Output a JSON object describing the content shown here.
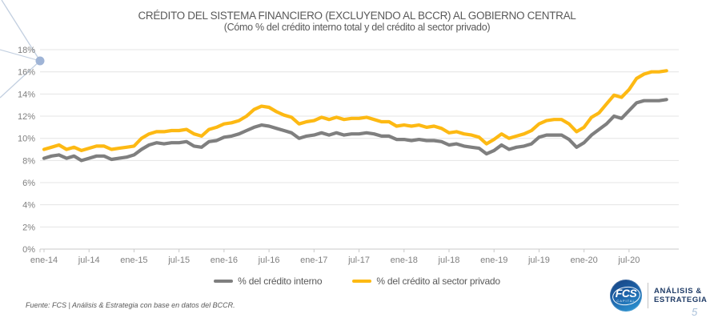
{
  "header": {
    "title": "CRÉDITO DEL SISTEMA FINANCIERO (EXCLUYENDO AL BCCR) AL GOBIERNO CENTRAL",
    "subtitle": "(Cómo % del crédito interno total y del crédito al sector privado)"
  },
  "legend": {
    "items": [
      {
        "label": "% del crédito interno",
        "color": "#7f7f7f"
      },
      {
        "label": "% del crédito al sector privado",
        "color": "#fdb913"
      }
    ]
  },
  "footer": {
    "source": "Fuente: FCS  | Análisis & Estrategia con base en datos del  BCCR."
  },
  "logo": {
    "circle_text": "FCS",
    "circle_subtext": "CAPITAL",
    "line1": "ANÁLISIS &",
    "line2": "ESTRATEGIA"
  },
  "page": {
    "number": "5"
  },
  "decoration": {
    "dot_color": "#9fb4d6",
    "line_color": "#c2cfe0"
  },
  "chart_data": {
    "type": "line",
    "title": "CRÉDITO DEL SISTEMA FINANCIERO (EXCLUYENDO AL BCCR) AL GOBIERNO CENTRAL",
    "subtitle": "(Cómo % del crédito interno total y del crédito al sector privado)",
    "xlabel": "",
    "ylabel": "",
    "ylim": [
      0,
      18
    ],
    "ytick_step": 2,
    "ytick_suffix": "%",
    "grid": true,
    "legend_position": "bottom",
    "x_tick_every": 6,
    "x": [
      "ene-14",
      "feb-14",
      "mar-14",
      "abr-14",
      "may-14",
      "jun-14",
      "jul-14",
      "ago-14",
      "sep-14",
      "oct-14",
      "nov-14",
      "dic-14",
      "ene-15",
      "feb-15",
      "mar-15",
      "abr-15",
      "may-15",
      "jun-15",
      "jul-15",
      "ago-15",
      "sep-15",
      "oct-15",
      "nov-15",
      "dic-15",
      "ene-16",
      "feb-16",
      "mar-16",
      "abr-16",
      "may-16",
      "jun-16",
      "jul-16",
      "ago-16",
      "sep-16",
      "oct-16",
      "nov-16",
      "dic-16",
      "ene-17",
      "feb-17",
      "mar-17",
      "abr-17",
      "may-17",
      "jun-17",
      "jul-17",
      "ago-17",
      "sep-17",
      "oct-17",
      "nov-17",
      "dic-17",
      "ene-18",
      "feb-18",
      "mar-18",
      "abr-18",
      "may-18",
      "jun-18",
      "jul-18",
      "ago-18",
      "sep-18",
      "oct-18",
      "nov-18",
      "dic-18",
      "ene-19",
      "feb-19",
      "mar-19",
      "abr-19",
      "may-19",
      "jun-19",
      "jul-19",
      "ago-19",
      "sep-19",
      "oct-19",
      "nov-19",
      "dic-19",
      "ene-20",
      "feb-20",
      "mar-20",
      "abr-20",
      "may-20",
      "jun-20",
      "jul-20",
      "ago-20",
      "sep-20",
      "oct-20",
      "nov-20",
      "dic-20"
    ],
    "series": [
      {
        "name": "% del crédito interno",
        "color": "#7f7f7f",
        "values": [
          8.2,
          8.4,
          8.5,
          8.2,
          8.4,
          8.0,
          8.2,
          8.4,
          8.4,
          8.1,
          8.2,
          8.3,
          8.5,
          9.0,
          9.4,
          9.6,
          9.5,
          9.6,
          9.6,
          9.7,
          9.3,
          9.2,
          9.7,
          9.8,
          10.1,
          10.2,
          10.4,
          10.7,
          11.0,
          11.2,
          11.1,
          10.9,
          10.7,
          10.5,
          10.0,
          10.2,
          10.3,
          10.5,
          10.3,
          10.5,
          10.3,
          10.4,
          10.4,
          10.5,
          10.4,
          10.2,
          10.2,
          9.9,
          9.9,
          9.8,
          9.9,
          9.8,
          9.8,
          9.7,
          9.4,
          9.5,
          9.3,
          9.2,
          9.1,
          8.6,
          8.9,
          9.4,
          9.0,
          9.2,
          9.3,
          9.5,
          10.1,
          10.3,
          10.3,
          10.3,
          9.9,
          9.2,
          9.6,
          10.3,
          10.8,
          11.3,
          12.0,
          11.8,
          12.5,
          13.2,
          13.4,
          13.4,
          13.4,
          13.5
        ]
      },
      {
        "name": "% del crédito al sector privado",
        "color": "#fdb913",
        "values": [
          9.0,
          9.2,
          9.4,
          9.0,
          9.2,
          8.9,
          9.1,
          9.3,
          9.3,
          9.0,
          9.1,
          9.2,
          9.3,
          10.0,
          10.4,
          10.6,
          10.6,
          10.7,
          10.7,
          10.8,
          10.4,
          10.2,
          10.8,
          11.0,
          11.3,
          11.4,
          11.6,
          12.0,
          12.6,
          12.9,
          12.8,
          12.4,
          12.1,
          11.9,
          11.3,
          11.5,
          11.6,
          11.9,
          11.7,
          11.9,
          11.7,
          11.8,
          11.8,
          11.9,
          11.7,
          11.5,
          11.5,
          11.1,
          11.2,
          11.1,
          11.2,
          11.0,
          11.1,
          10.9,
          10.5,
          10.6,
          10.4,
          10.3,
          10.1,
          9.5,
          9.9,
          10.4,
          10.0,
          10.2,
          10.4,
          10.7,
          11.3,
          11.6,
          11.7,
          11.7,
          11.3,
          10.6,
          11.0,
          11.9,
          12.3,
          13.1,
          13.9,
          13.7,
          14.4,
          15.4,
          15.8,
          16.0,
          16.0,
          16.1
        ]
      }
    ]
  }
}
